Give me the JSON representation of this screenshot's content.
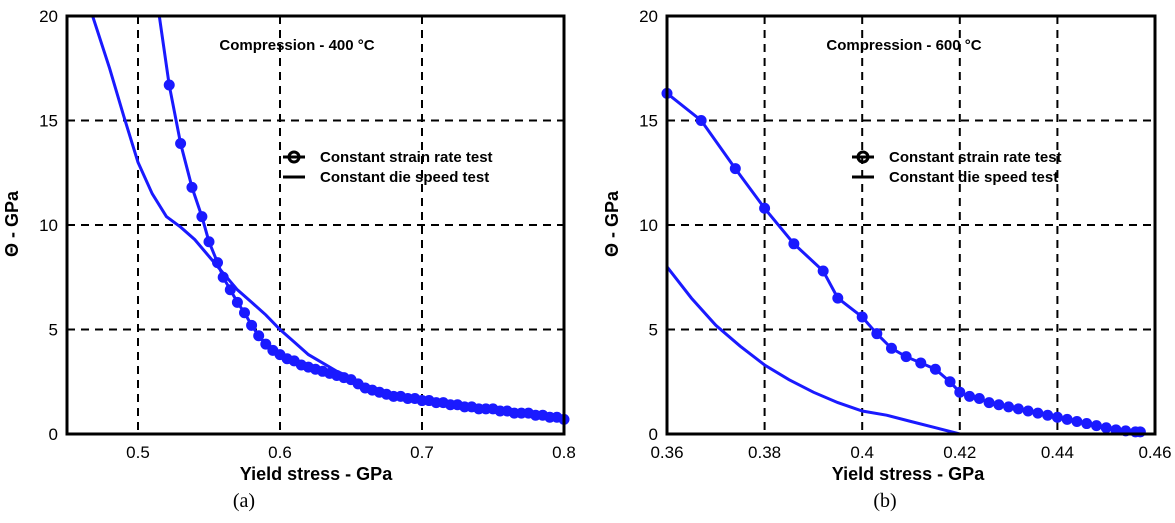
{
  "chart_data": [
    {
      "type": "line",
      "panel_label": "(a)",
      "title": "Compression - 400 °C",
      "xlabel": "Yield stress - GPa",
      "ylabel": "Θ - GPa",
      "xlim": [
        0.45,
        0.8
      ],
      "ylim": [
        0,
        20
      ],
      "xticks": [
        0.5,
        0.6,
        0.7,
        0.8
      ],
      "yticks": [
        0,
        5,
        10,
        15,
        20
      ],
      "xtick_labels": [
        "0.5",
        "0.6",
        "0.7",
        "0.8"
      ],
      "ytick_labels": [
        "0",
        "5",
        "10",
        "15",
        "20"
      ],
      "grid": true,
      "legend_position": "right",
      "legend": [
        "Constant strain rate test",
        "Constant die speed test"
      ],
      "series": [
        {
          "name": "Constant strain rate test",
          "marker": "circle",
          "color": "#1a1aff",
          "x": [
            0.515,
            0.522,
            0.53,
            0.538,
            0.545,
            0.55,
            0.556,
            0.56,
            0.565,
            0.57,
            0.575,
            0.58,
            0.585,
            0.59,
            0.595,
            0.6,
            0.605,
            0.61,
            0.615,
            0.62,
            0.625,
            0.63,
            0.635,
            0.64,
            0.645,
            0.65,
            0.655,
            0.66,
            0.665,
            0.67,
            0.675,
            0.68,
            0.685,
            0.69,
            0.695,
            0.7,
            0.705,
            0.71,
            0.715,
            0.72,
            0.725,
            0.73,
            0.735,
            0.74,
            0.745,
            0.75,
            0.755,
            0.76,
            0.765,
            0.77,
            0.775,
            0.78,
            0.785,
            0.79,
            0.795,
            0.8
          ],
          "y": [
            20,
            16.7,
            13.9,
            11.8,
            10.4,
            9.2,
            8.2,
            7.5,
            6.9,
            6.3,
            5.8,
            5.2,
            4.7,
            4.3,
            4.0,
            3.8,
            3.6,
            3.5,
            3.3,
            3.2,
            3.1,
            3.0,
            2.9,
            2.8,
            2.7,
            2.6,
            2.4,
            2.2,
            2.1,
            2.0,
            1.9,
            1.8,
            1.8,
            1.7,
            1.7,
            1.6,
            1.6,
            1.5,
            1.5,
            1.4,
            1.4,
            1.3,
            1.3,
            1.2,
            1.2,
            1.2,
            1.1,
            1.1,
            1.0,
            1.0,
            1.0,
            0.9,
            0.9,
            0.8,
            0.8,
            0.7
          ]
        },
        {
          "name": "Constant die speed test",
          "marker": "none",
          "color": "#1a1aff",
          "x": [
            0.468,
            0.48,
            0.49,
            0.5,
            0.51,
            0.52,
            0.53,
            0.54,
            0.55,
            0.56,
            0.57,
            0.58,
            0.59,
            0.6,
            0.61,
            0.62,
            0.63,
            0.64,
            0.65,
            0.66,
            0.67,
            0.68,
            0.7,
            0.72,
            0.74,
            0.76,
            0.78,
            0.8
          ],
          "y": [
            20,
            17.5,
            15.2,
            13.0,
            11.5,
            10.4,
            9.9,
            9.3,
            8.5,
            7.7,
            6.9,
            6.3,
            5.7,
            5.0,
            4.4,
            3.8,
            3.4,
            3.0,
            2.7,
            2.3,
            2.1,
            1.9,
            1.6,
            1.4,
            1.2,
            1.0,
            0.9,
            0.7
          ]
        }
      ]
    },
    {
      "type": "line",
      "panel_label": "(b)",
      "title": "Compression - 600 °C",
      "xlabel": "Yield stress - GPa",
      "ylabel": "Θ - GPa",
      "xlim": [
        0.36,
        0.46
      ],
      "ylim": [
        0,
        20
      ],
      "xticks": [
        0.36,
        0.38,
        0.4,
        0.42,
        0.44,
        0.46
      ],
      "yticks": [
        0,
        5,
        10,
        15,
        20
      ],
      "xtick_labels": [
        "0.36",
        "0.38",
        "0.4",
        "0.42",
        "0.44",
        "0.46"
      ],
      "ytick_labels": [
        "0",
        "5",
        "10",
        "15",
        "20"
      ],
      "grid": true,
      "legend_position": "right",
      "legend": [
        "Constant strain rate test",
        "Constant die speed test"
      ],
      "series": [
        {
          "name": "Constant strain rate test",
          "marker": "circle",
          "color": "#1a1aff",
          "x": [
            0.36,
            0.367,
            0.374,
            0.38,
            0.386,
            0.392,
            0.395,
            0.4,
            0.403,
            0.406,
            0.409,
            0.412,
            0.415,
            0.418,
            0.42,
            0.422,
            0.424,
            0.426,
            0.428,
            0.43,
            0.432,
            0.434,
            0.436,
            0.438,
            0.44,
            0.442,
            0.444,
            0.446,
            0.448,
            0.45,
            0.452,
            0.454,
            0.456,
            0.457
          ],
          "y": [
            16.3,
            15.0,
            12.7,
            10.8,
            9.1,
            7.8,
            6.5,
            5.6,
            4.8,
            4.1,
            3.7,
            3.4,
            3.1,
            2.5,
            2.0,
            1.8,
            1.7,
            1.5,
            1.4,
            1.3,
            1.2,
            1.1,
            1.0,
            0.9,
            0.8,
            0.7,
            0.6,
            0.5,
            0.4,
            0.3,
            0.2,
            0.15,
            0.1,
            0.1
          ]
        },
        {
          "name": "Constant die speed test",
          "marker": "none",
          "color": "#1a1aff",
          "x": [
            0.36,
            0.365,
            0.37,
            0.375,
            0.38,
            0.385,
            0.39,
            0.395,
            0.4,
            0.405,
            0.41,
            0.415,
            0.42
          ],
          "y": [
            8.0,
            6.5,
            5.2,
            4.2,
            3.3,
            2.6,
            2.0,
            1.5,
            1.1,
            0.9,
            0.6,
            0.3,
            0.0
          ]
        }
      ]
    }
  ]
}
